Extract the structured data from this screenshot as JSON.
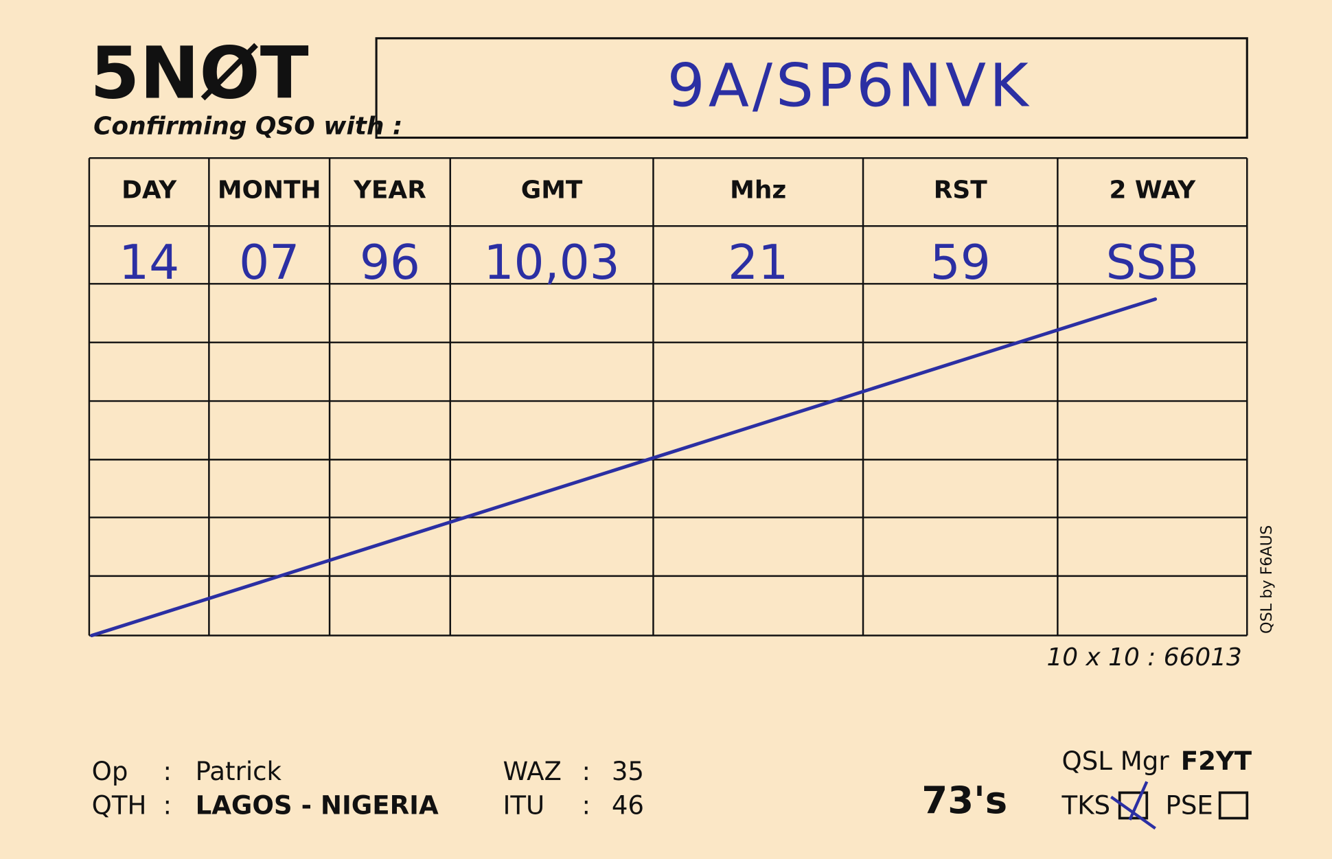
{
  "header": {
    "callsign": "5NØT",
    "subtitle": "Confirming QSO with :",
    "worked_station": "9A/SP6NVK"
  },
  "table": {
    "columns": [
      "DAY",
      "MONTH",
      "YEAR",
      "GMT",
      "Mhz",
      "RST",
      "2 WAY"
    ],
    "rows": [
      [
        "14",
        "07",
        "96",
        "10,03",
        "21",
        "59",
        "SSB"
      ]
    ]
  },
  "side_note": "QSL by F6AUS",
  "locator": "10 x 10 : 66013",
  "footer": {
    "operator": {
      "label": "Op",
      "separator": ":",
      "value": "Patrick"
    },
    "qth": {
      "label": "QTH",
      "separator": ":",
      "value": "LAGOS - NIGERIA"
    },
    "waz": {
      "label": "WAZ",
      "separator": ":",
      "value": "35"
    },
    "itu": {
      "label": "ITU",
      "separator": ":",
      "value": "46"
    },
    "greeting": "73's",
    "qsl_manager": {
      "label": "QSL Mgr",
      "value": "F2YT"
    },
    "tks": "TKS",
    "pse": "PSE"
  }
}
